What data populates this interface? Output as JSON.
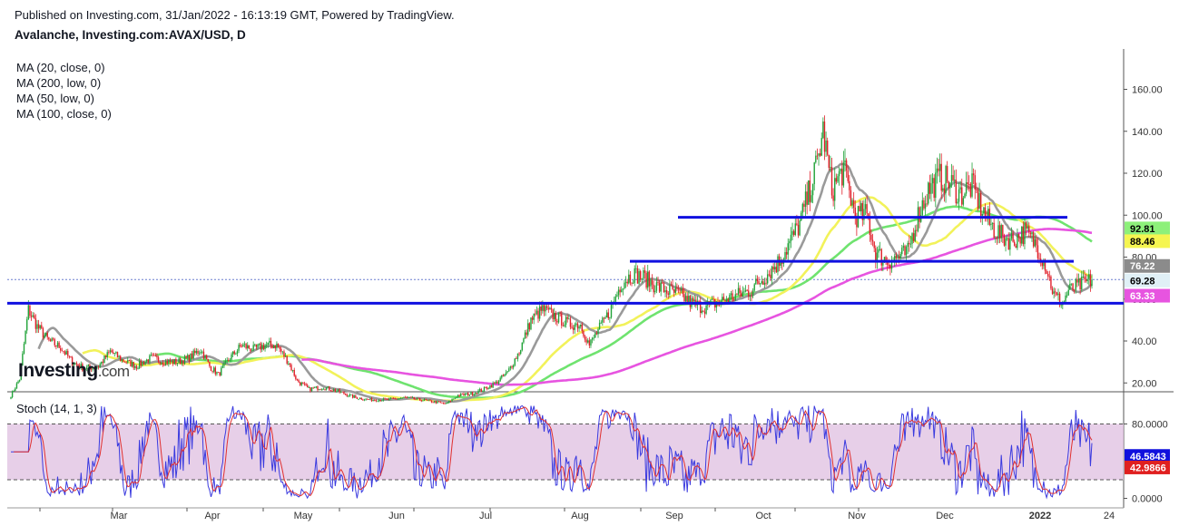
{
  "header": {
    "published": "Published on Investing.com, 31/Jan/2022 - 16:13:19 GMT, Powered by TradingView.",
    "symbol": "Avalanche, Investing.com:AVAX/USD, D"
  },
  "legend": [
    "MA (20, close, 0)",
    "MA (200, low, 0)",
    "MA (50, low, 0)",
    "MA (100, close, 0)"
  ],
  "logo": {
    "main": "Investing",
    "suffix": ".com"
  },
  "stoch_label": "Stoch (14, 1, 3)",
  "colors": {
    "up": "#22a33a",
    "down": "#e0202a",
    "ma20": "#9a9a9a",
    "ma200": "#e754e0",
    "ma50": "#f2f25a",
    "ma100": "#6fe36f",
    "support": "#1010e0",
    "stochK": "#3a3adf",
    "stochD": "#e03030",
    "stochBand": "#dfbfe0",
    "pricebadge": "#e0f0f6"
  },
  "chart_data": [
    {
      "type": "candlestick",
      "title": "Avalanche, Investing.com:AVAX/USD, D",
      "ylim": [
        0,
        165
      ],
      "y_ticks": [
        "160.00",
        "140.00",
        "120.00",
        "100.00",
        "80.00",
        "60.00",
        "40.00",
        "20.00"
      ],
      "x_ticks": [
        "Mar",
        "Apr",
        "May",
        "Jun",
        "Jul",
        "Aug",
        "Sep",
        "Oct",
        "Nov",
        "Dec",
        "2022",
        "24"
      ],
      "close_anchors": [
        [
          0,
          14
        ],
        [
          6,
          22
        ],
        [
          12,
          55
        ],
        [
          18,
          47
        ],
        [
          26,
          40
        ],
        [
          34,
          37
        ],
        [
          42,
          30
        ],
        [
          50,
          27
        ],
        [
          60,
          28
        ],
        [
          68,
          35
        ],
        [
          76,
          31
        ],
        [
          86,
          28
        ],
        [
          96,
          32
        ],
        [
          106,
          30
        ],
        [
          114,
          30
        ],
        [
          122,
          32
        ],
        [
          130,
          36
        ],
        [
          136,
          28
        ],
        [
          142,
          24
        ],
        [
          150,
          32
        ],
        [
          158,
          38
        ],
        [
          166,
          36
        ],
        [
          174,
          38
        ],
        [
          182,
          38
        ],
        [
          190,
          30
        ],
        [
          196,
          21
        ],
        [
          204,
          17
        ],
        [
          214,
          18
        ],
        [
          224,
          16
        ],
        [
          236,
          13
        ],
        [
          246,
          12
        ],
        [
          258,
          12
        ],
        [
          270,
          13
        ],
        [
          280,
          12
        ],
        [
          290,
          11
        ],
        [
          298,
          10
        ],
        [
          306,
          14
        ],
        [
          316,
          15
        ],
        [
          324,
          17
        ],
        [
          332,
          20
        ],
        [
          340,
          25
        ],
        [
          348,
          35
        ],
        [
          356,
          50
        ],
        [
          364,
          55
        ],
        [
          372,
          52
        ],
        [
          382,
          48
        ],
        [
          390,
          48
        ],
        [
          396,
          38
        ],
        [
          402,
          45
        ],
        [
          410,
          54
        ],
        [
          418,
          68
        ],
        [
          426,
          72
        ],
        [
          434,
          70
        ],
        [
          442,
          66
        ],
        [
          450,
          64
        ],
        [
          458,
          62
        ],
        [
          466,
          58
        ],
        [
          474,
          56
        ],
        [
          482,
          58
        ],
        [
          490,
          60
        ],
        [
          498,
          62
        ],
        [
          506,
          64
        ],
        [
          512,
          68
        ],
        [
          518,
          72
        ],
        [
          526,
          78
        ],
        [
          534,
          88
        ],
        [
          540,
          96
        ],
        [
          546,
          110
        ],
        [
          552,
          125
        ],
        [
          556,
          140
        ],
        [
          562,
          112
        ],
        [
          570,
          122
        ],
        [
          578,
          100
        ],
        [
          586,
          100
        ],
        [
          592,
          82
        ],
        [
          600,
          78
        ],
        [
          608,
          80
        ],
        [
          614,
          82
        ],
        [
          620,
          98
        ],
        [
          628,
          112
        ],
        [
          636,
          118
        ],
        [
          642,
          116
        ],
        [
          650,
          110
        ],
        [
          658,
          114
        ],
        [
          664,
          104
        ],
        [
          670,
          96
        ],
        [
          678,
          90
        ],
        [
          686,
          88
        ],
        [
          694,
          92
        ],
        [
          702,
          86
        ],
        [
          708,
          77
        ],
        [
          714,
          62
        ],
        [
          720,
          58
        ],
        [
          724,
          64
        ],
        [
          730,
          66
        ],
        [
          736,
          68
        ],
        [
          740,
          69.28
        ]
      ],
      "last_price": "69.28",
      "levels": [
        99,
        78,
        58
      ],
      "value_badges": [
        {
          "series": "MA (100, close, 0)",
          "value": "92.81"
        },
        {
          "series": "MA (50, low, 0)",
          "value": "88.46"
        },
        {
          "series": "MA (20, close, 0)",
          "value": "76.22"
        },
        {
          "series": "Close",
          "value": "69.28"
        },
        {
          "series": "MA (200, low, 0)",
          "value": "63.33"
        }
      ]
    },
    {
      "type": "line",
      "title": "Stoch (14, 1, 3)",
      "ylim": [
        -5,
        105
      ],
      "y_ticks": [
        "80.0000",
        "0.0000"
      ],
      "band": [
        20,
        80
      ],
      "k_last": "46.5843",
      "d_last": "42.9866"
    }
  ]
}
